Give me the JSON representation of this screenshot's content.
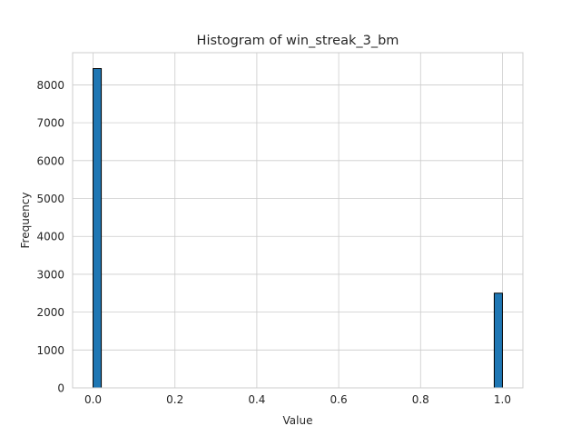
{
  "chart_data": {
    "type": "bar",
    "title": "Histogram of win_streak_3_bm",
    "xlabel": "Value",
    "ylabel": "Frequency",
    "xlim": [
      -0.05,
      1.05
    ],
    "ylim": [
      0,
      8850
    ],
    "xticks": [
      "0.0",
      "0.2",
      "0.4",
      "0.6",
      "0.8",
      "1.0"
    ],
    "xtick_values": [
      0,
      0.2,
      0.4,
      0.6,
      0.8,
      1.0
    ],
    "yticks": [
      "0",
      "1000",
      "2000",
      "3000",
      "4000",
      "5000",
      "6000",
      "7000",
      "8000"
    ],
    "ytick_values": [
      0,
      1000,
      2000,
      3000,
      4000,
      5000,
      6000,
      7000,
      8000
    ],
    "bins": 50,
    "bars": [
      {
        "x0": 0.0,
        "x1": 0.02,
        "value": 8430
      },
      {
        "x0": 0.98,
        "x1": 1.0,
        "value": 2500
      }
    ],
    "grid": true,
    "bar_color": "#1f77b4",
    "edge_color": "#000000"
  }
}
